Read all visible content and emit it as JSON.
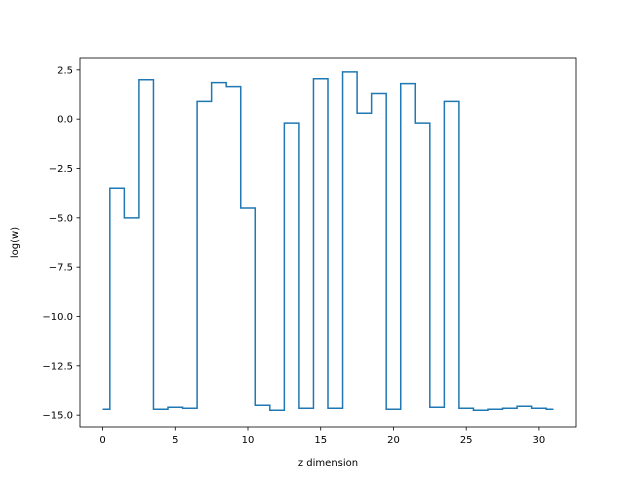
{
  "chart_data": {
    "type": "line",
    "drawstyle": "steps-mid",
    "title": "",
    "xlabel": "z dimension",
    "ylabel": "log(w)",
    "xlim": [
      -1.55,
      32.55
    ],
    "ylim": [
      -15.6,
      3.1
    ],
    "grid": false,
    "line_color": "#1f77b4",
    "xticks": [
      0,
      5,
      10,
      15,
      20,
      25,
      30
    ],
    "xtick_labels": [
      "0",
      "5",
      "10",
      "15",
      "20",
      "25",
      "30"
    ],
    "yticks": [
      2.5,
      0.0,
      -2.5,
      -5.0,
      -7.5,
      -10.0,
      -12.5,
      -15.0
    ],
    "ytick_labels": [
      "2.5",
      "0.0",
      "−2.5",
      "−5.0",
      "−7.5",
      "−10.0",
      "−12.5",
      "−15.0"
    ],
    "x": [
      0,
      1,
      2,
      3,
      4,
      5,
      6,
      7,
      8,
      9,
      10,
      11,
      12,
      13,
      14,
      15,
      16,
      17,
      18,
      19,
      20,
      21,
      22,
      23,
      24,
      25,
      26,
      27,
      28,
      29,
      30,
      31
    ],
    "y": [
      -14.7,
      -3.5,
      -5.0,
      2.0,
      -14.7,
      -14.6,
      -14.65,
      0.9,
      1.85,
      1.65,
      -4.5,
      -14.5,
      -14.75,
      -0.2,
      -14.65,
      2.05,
      -14.65,
      2.4,
      0.3,
      1.3,
      -14.7,
      1.8,
      -0.2,
      -14.6,
      0.9,
      -14.65,
      -14.75,
      -14.7,
      -14.65,
      -14.55,
      -14.65,
      -14.7
    ]
  }
}
